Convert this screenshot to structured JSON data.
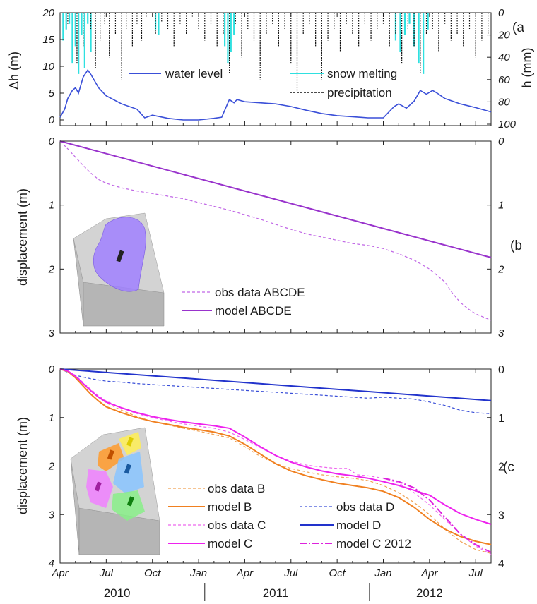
{
  "chart_data": [
    {
      "type": "line",
      "panel_label": "(a",
      "ylabel_left": "Δh (m)",
      "ylabel_right": "h (mm)",
      "ylim_left": [
        0,
        20
      ],
      "ylim_right_inverted": [
        0,
        100
      ],
      "yticks_left": [
        "0",
        "5",
        "10",
        "15",
        "20"
      ],
      "yticks_right": [
        "0",
        "20",
        "40",
        "60",
        "80",
        "100"
      ],
      "colors": {
        "water_level": "#3a4fd8",
        "snow_melting": "#2fe0e0",
        "precipitation": "#111111"
      },
      "legend": {
        "water_level": "water level",
        "snow_melting": "snow melting",
        "precipitation": "precipitation"
      },
      "series": [
        {
          "name": "water level",
          "axis": "left",
          "x": [
            0,
            0.3,
            0.5,
            0.8,
            1.0,
            1.2,
            1.5,
            1.8,
            2.0,
            2.5,
            3,
            4,
            5,
            5.5,
            6,
            7,
            8,
            9,
            10,
            10.5,
            11,
            11.3,
            11.5,
            12,
            13,
            14,
            15,
            16,
            17,
            18,
            19,
            20,
            21,
            21.7,
            22,
            22.5,
            23,
            23.4,
            23.8,
            24.2,
            24.5,
            25,
            26,
            27,
            28
          ],
          "y": [
            0.5,
            2,
            4,
            5.5,
            6,
            5,
            8,
            9.3,
            8.5,
            6,
            4.5,
            3,
            2,
            0.4,
            0.9,
            0.3,
            0,
            0,
            0.3,
            0.5,
            3.8,
            3.2,
            3.8,
            3.4,
            3.2,
            3,
            2.5,
            1.8,
            1.2,
            0.8,
            0.6,
            0.4,
            0.4,
            2.5,
            3,
            2.2,
            3.5,
            5.5,
            4.8,
            5.5,
            5,
            4,
            3,
            2.3,
            1.5
          ]
        },
        {
          "name": "snow melting",
          "axis": "right",
          "x": [
            0,
            0.2,
            0.4,
            0.6,
            0.8,
            1.0,
            1.2,
            1.4,
            1.6,
            1.8,
            2.0,
            2.2,
            6.0,
            6.2,
            6.4,
            6.6,
            10.5,
            10.7,
            10.9,
            11.1,
            11.3,
            11.5,
            21.5,
            21.8,
            22.1,
            22.4,
            22.7,
            23.0,
            23.3,
            23.6,
            23.9,
            24.2
          ],
          "y": [
            0,
            25,
            15,
            10,
            45,
            30,
            55,
            20,
            50,
            10,
            35,
            0,
            0,
            15,
            20,
            0,
            0,
            30,
            45,
            35,
            20,
            0,
            0,
            25,
            35,
            20,
            10,
            30,
            45,
            55,
            15,
            0
          ]
        },
        {
          "name": "precipitation",
          "axis": "right",
          "x": [
            0.5,
            1.1,
            1.5,
            2.0,
            2.3,
            2.6,
            2.9,
            3.2,
            3.6,
            4.0,
            4.3,
            4.7,
            5.0,
            5.3,
            5.6,
            6.2,
            6.6,
            7.0,
            7.4,
            7.8,
            8.2,
            8.6,
            9.0,
            9.4,
            9.8,
            10.2,
            10.6,
            11.0,
            11.4,
            11.8,
            12.2,
            12.6,
            13.0,
            13.4,
            13.8,
            14.2,
            14.6,
            15.0,
            15.4,
            15.8,
            16.2,
            16.6,
            17.0,
            17.4,
            17.8,
            18.2,
            18.6,
            19.0,
            19.4,
            19.8,
            20.2,
            20.6,
            21.0,
            21.4,
            21.8,
            22.2,
            22.6,
            23.0,
            23.4,
            23.8,
            24.2,
            24.6,
            25.0,
            25.4,
            25.8,
            26.2,
            26.6,
            27.0,
            27.4,
            27.8
          ],
          "y": [
            10,
            45,
            30,
            15,
            50,
            25,
            10,
            40,
            20,
            60,
            15,
            30,
            10,
            25,
            5,
            20,
            8,
            15,
            30,
            10,
            20,
            5,
            15,
            25,
            10,
            30,
            20,
            55,
            10,
            40,
            15,
            25,
            60,
            20,
            10,
            30,
            15,
            45,
            70,
            20,
            10,
            30,
            60,
            25,
            15,
            35,
            10,
            20,
            30,
            10,
            25,
            15,
            10,
            30,
            20,
            45,
            15,
            30,
            55,
            20,
            15,
            35,
            10,
            25,
            20,
            30,
            15,
            40,
            25,
            20
          ]
        }
      ]
    },
    {
      "type": "line",
      "panel_label": "(b",
      "ylabel": "displacement (m)",
      "ylim": [
        0,
        3
      ],
      "y_inverted": true,
      "yticks_left": [
        "0",
        "1",
        "2",
        "3"
      ],
      "yticks_right": [
        "0",
        "1",
        "2",
        "3"
      ],
      "colors": {
        "obs": "#c066e6",
        "model": "#9933cc"
      },
      "legend": {
        "obs": "obs data ABCDE",
        "model": "model ABCDE"
      },
      "series": [
        {
          "name": "obs data ABCDE",
          "style": "dashed",
          "x": [
            0,
            0.5,
            1,
            1.5,
            2,
            2.5,
            3,
            4,
            5,
            6,
            7,
            8,
            9,
            10,
            11,
            12,
            13,
            14,
            15,
            16,
            17,
            18,
            19,
            20,
            21,
            22,
            23,
            24,
            25,
            25.5,
            26,
            26.5,
            27,
            27.5,
            28
          ],
          "y": [
            0,
            0.12,
            0.25,
            0.38,
            0.5,
            0.6,
            0.66,
            0.73,
            0.78,
            0.82,
            0.86,
            0.9,
            0.96,
            1.02,
            1.08,
            1.15,
            1.22,
            1.3,
            1.38,
            1.45,
            1.5,
            1.55,
            1.6,
            1.63,
            1.68,
            1.76,
            1.86,
            2.0,
            2.2,
            2.38,
            2.52,
            2.62,
            2.7,
            2.75,
            2.8
          ]
        },
        {
          "name": "model ABCDE",
          "style": "solid",
          "x": [
            0,
            28
          ],
          "y": [
            0,
            1.82
          ]
        }
      ]
    },
    {
      "type": "line",
      "panel_label": "(c",
      "ylabel": "displacement (m)",
      "ylim": [
        0,
        4
      ],
      "y_inverted": true,
      "yticks_left": [
        "0",
        "1",
        "2",
        "3",
        "4"
      ],
      "yticks_right": [
        "0",
        "1",
        "2",
        "3",
        "4"
      ],
      "xlim": [
        0,
        28
      ],
      "x_unit": "months since Apr 2010",
      "xticks": [
        "Apr",
        "Jul",
        "Oct",
        "Jan",
        "Apr",
        "Jul",
        "Oct",
        "Jan",
        "Apr",
        "Jul"
      ],
      "years": [
        "2010",
        "2011",
        "2012"
      ],
      "colors": {
        "obs_b": "#f0a050",
        "model_b": "#f08020",
        "obs_c": "#ee66ee",
        "model_c": "#ee22ee",
        "obs_d": "#3a4fd8",
        "model_d": "#2233cc",
        "model_c_2012": "#dd22dd"
      },
      "legend": {
        "obs_b": "obs data B",
        "model_b": "model B",
        "obs_d": "obs data D",
        "obs_c": "obs data C",
        "model_d": "model D",
        "model_c": "model C",
        "model_c_2012": "model C 2012"
      },
      "series": [
        {
          "name": "obs data B",
          "style": "dashed",
          "x": [
            0,
            0.5,
            1,
            1.5,
            2,
            2.5,
            3,
            4,
            5,
            6,
            7,
            8,
            9,
            10,
            11,
            12,
            13,
            14,
            15,
            16,
            17,
            18,
            19,
            20,
            21,
            22,
            23,
            24,
            25,
            26,
            27,
            28
          ],
          "y": [
            0,
            0.05,
            0.15,
            0.3,
            0.45,
            0.58,
            0.7,
            0.85,
            0.98,
            1.08,
            1.15,
            1.22,
            1.28,
            1.35,
            1.42,
            1.6,
            1.8,
            1.95,
            2.05,
            2.12,
            2.18,
            2.22,
            2.25,
            2.3,
            2.4,
            2.55,
            2.75,
            3.0,
            3.3,
            3.55,
            3.72,
            3.8
          ]
        },
        {
          "name": "model B",
          "style": "solid",
          "x": [
            0,
            0.5,
            1,
            1.5,
            2,
            2.5,
            3,
            4,
            5,
            6,
            7,
            8,
            9,
            10,
            11,
            12,
            13,
            14,
            15,
            16,
            17,
            18,
            19,
            20,
            21,
            22,
            23,
            24,
            25,
            26,
            27,
            28
          ],
          "y": [
            0,
            0.05,
            0.18,
            0.35,
            0.52,
            0.66,
            0.78,
            0.9,
            1.0,
            1.08,
            1.14,
            1.2,
            1.25,
            1.3,
            1.38,
            1.55,
            1.75,
            1.95,
            2.1,
            2.2,
            2.28,
            2.35,
            2.4,
            2.45,
            2.52,
            2.65,
            2.85,
            3.1,
            3.3,
            3.45,
            3.55,
            3.62
          ]
        },
        {
          "name": "obs data C",
          "style": "dashed",
          "x": [
            0,
            0.5,
            1,
            1.5,
            2,
            2.5,
            3,
            4,
            5,
            6,
            7,
            8,
            9,
            10,
            11,
            12,
            13,
            14,
            15,
            16,
            17,
            18,
            18.7,
            19.3,
            20,
            21,
            22,
            23,
            24,
            25,
            26,
            27,
            28
          ],
          "y": [
            0,
            0.04,
            0.13,
            0.28,
            0.42,
            0.55,
            0.66,
            0.8,
            0.92,
            1.0,
            1.07,
            1.13,
            1.18,
            1.22,
            1.3,
            1.45,
            1.62,
            1.78,
            1.9,
            1.98,
            2.02,
            2.05,
            2.05,
            2.18,
            2.2,
            2.25,
            2.35,
            2.55,
            2.8,
            3.1,
            3.4,
            3.65,
            3.82
          ]
        },
        {
          "name": "model C",
          "style": "solid",
          "x": [
            0,
            0.5,
            1,
            1.5,
            2,
            2.5,
            3,
            4,
            5,
            6,
            7,
            8,
            9,
            10,
            11,
            12,
            13,
            14,
            15,
            16,
            17,
            18,
            19,
            20,
            21,
            22,
            23,
            24,
            25,
            26,
            27,
            28
          ],
          "y": [
            0,
            0.04,
            0.15,
            0.3,
            0.45,
            0.58,
            0.68,
            0.8,
            0.9,
            0.98,
            1.04,
            1.09,
            1.13,
            1.17,
            1.22,
            1.4,
            1.6,
            1.78,
            1.92,
            2.02,
            2.1,
            2.16,
            2.2,
            2.25,
            2.32,
            2.4,
            2.5,
            2.6,
            2.8,
            2.98,
            3.1,
            3.2
          ]
        },
        {
          "name": "model C 2012",
          "style": "dashdot",
          "x": [
            21,
            22,
            23,
            24,
            25,
            26,
            27,
            28
          ],
          "y": [
            2.25,
            2.32,
            2.45,
            2.7,
            3.05,
            3.4,
            3.62,
            3.78
          ]
        },
        {
          "name": "obs data D",
          "style": "dashed",
          "x": [
            0,
            1,
            2,
            3,
            4,
            5,
            6,
            7,
            8,
            9,
            10,
            11,
            12,
            13,
            14,
            15,
            16,
            17,
            18,
            19,
            20,
            21,
            22,
            23,
            24,
            25,
            26,
            27,
            28
          ],
          "y": [
            0,
            0.13,
            0.2,
            0.25,
            0.27,
            0.3,
            0.32,
            0.34,
            0.36,
            0.38,
            0.4,
            0.42,
            0.44,
            0.46,
            0.48,
            0.5,
            0.52,
            0.54,
            0.56,
            0.58,
            0.6,
            0.58,
            0.6,
            0.62,
            0.68,
            0.75,
            0.85,
            0.9,
            0.92
          ]
        },
        {
          "name": "model D",
          "style": "solid",
          "x": [
            0,
            28
          ],
          "y": [
            0,
            0.65
          ]
        }
      ]
    }
  ]
}
